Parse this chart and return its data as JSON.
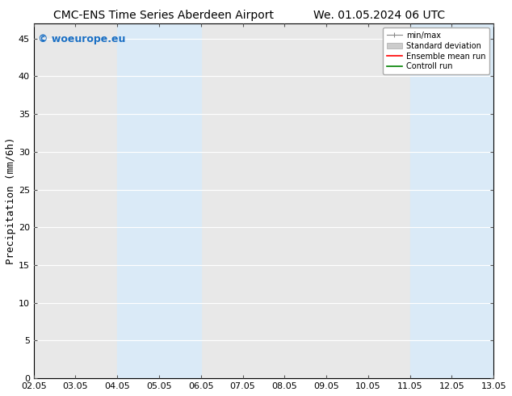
{
  "title_left": "CMC-ENS Time Series Aberdeen Airport",
  "title_right": "We. 01.05.2024 06 UTC",
  "ylabel": "Precipitation (mm/6h)",
  "watermark": "© woeurope.eu",
  "watermark_color": "#1a6fc4",
  "xlim_start": 0,
  "xlim_end": 11,
  "ylim": [
    0,
    47
  ],
  "yticks": [
    0,
    5,
    10,
    15,
    20,
    25,
    30,
    35,
    40,
    45
  ],
  "xtick_labels": [
    "02.05",
    "03.05",
    "04.05",
    "05.05",
    "06.05",
    "07.05",
    "08.05",
    "09.05",
    "10.05",
    "11.05",
    "12.05",
    "13.05"
  ],
  "xtick_positions": [
    0,
    1,
    2,
    3,
    4,
    5,
    6,
    7,
    8,
    9,
    10,
    11
  ],
  "shaded_bands": [
    {
      "x_start": 2,
      "x_end": 3,
      "color": "#daeaf7"
    },
    {
      "x_start": 3,
      "x_end": 4,
      "color": "#daeaf7"
    },
    {
      "x_start": 9,
      "x_end": 10,
      "color": "#daeaf7"
    },
    {
      "x_start": 10,
      "x_end": 11,
      "color": "#daeaf7"
    }
  ],
  "bg_color": "#ffffff",
  "plot_bg_color": "#e8e8e8",
  "grid_color": "#ffffff",
  "border_color": "#000000",
  "title_fontsize": 10,
  "axis_label_fontsize": 9,
  "tick_fontsize": 8,
  "watermark_fontsize": 9
}
